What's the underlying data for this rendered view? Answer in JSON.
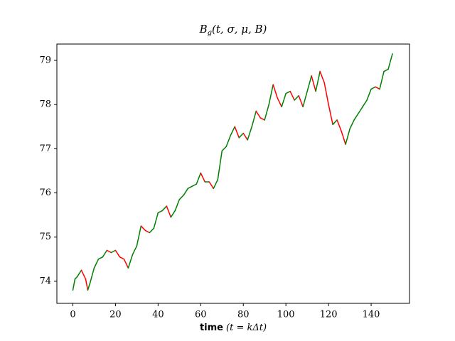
{
  "chart_data": {
    "type": "line",
    "title_parts": [
      "B",
      "g",
      "(t, σ, μ, B)"
    ],
    "xlabel_parts": [
      "time",
      "(t = kΔt)"
    ],
    "x": [
      0,
      1,
      2,
      4,
      6,
      7,
      8,
      10,
      12,
      14,
      16,
      18,
      20,
      22,
      24,
      26,
      28,
      30,
      32,
      34,
      36,
      38,
      40,
      42,
      44,
      46,
      48,
      50,
      52,
      54,
      56,
      58,
      60,
      62,
      64,
      66,
      68,
      70,
      72,
      74,
      76,
      78,
      80,
      82,
      84,
      86,
      88,
      90,
      92,
      94,
      96,
      98,
      100,
      102,
      104,
      106,
      108,
      110,
      112,
      114,
      116,
      118,
      120,
      122,
      124,
      126,
      128,
      130,
      132,
      134,
      136,
      138,
      140,
      142,
      144,
      146,
      148,
      150
    ],
    "series": [
      {
        "values": [
          73.8,
          74.05,
          74.1,
          74.25,
          74.05,
          73.8,
          73.95,
          74.3,
          74.5,
          74.55,
          74.7,
          74.65,
          74.7,
          74.55,
          74.5,
          74.3,
          74.6,
          74.8,
          75.25,
          75.15,
          75.1,
          75.2,
          75.55,
          75.6,
          75.7,
          75.45,
          75.6,
          75.85,
          75.95,
          76.1,
          76.15,
          76.2,
          76.45,
          76.25,
          76.25,
          76.1,
          76.3,
          76.95,
          77.05,
          77.3,
          77.5,
          77.25,
          77.35,
          77.2,
          77.5,
          77.85,
          77.7,
          77.65,
          78.0,
          78.45,
          78.15,
          77.95,
          78.25,
          78.3,
          78.1,
          78.2,
          77.95,
          78.3,
          78.65,
          78.3,
          78.75,
          78.5,
          78.0,
          77.55,
          77.65,
          77.4,
          77.1,
          77.45,
          77.65,
          77.8,
          77.95,
          78.1,
          78.35,
          78.4,
          78.35,
          78.75,
          78.8,
          79.15
        ]
      }
    ],
    "up_color": "green",
    "down_color": "red",
    "xlim": [
      -7.5,
      158
    ],
    "ylim": [
      73.5,
      79.37
    ],
    "xticks": [
      0,
      20,
      40,
      60,
      80,
      100,
      120,
      140
    ],
    "yticks": [
      74,
      75,
      76,
      77,
      78,
      79
    ]
  }
}
